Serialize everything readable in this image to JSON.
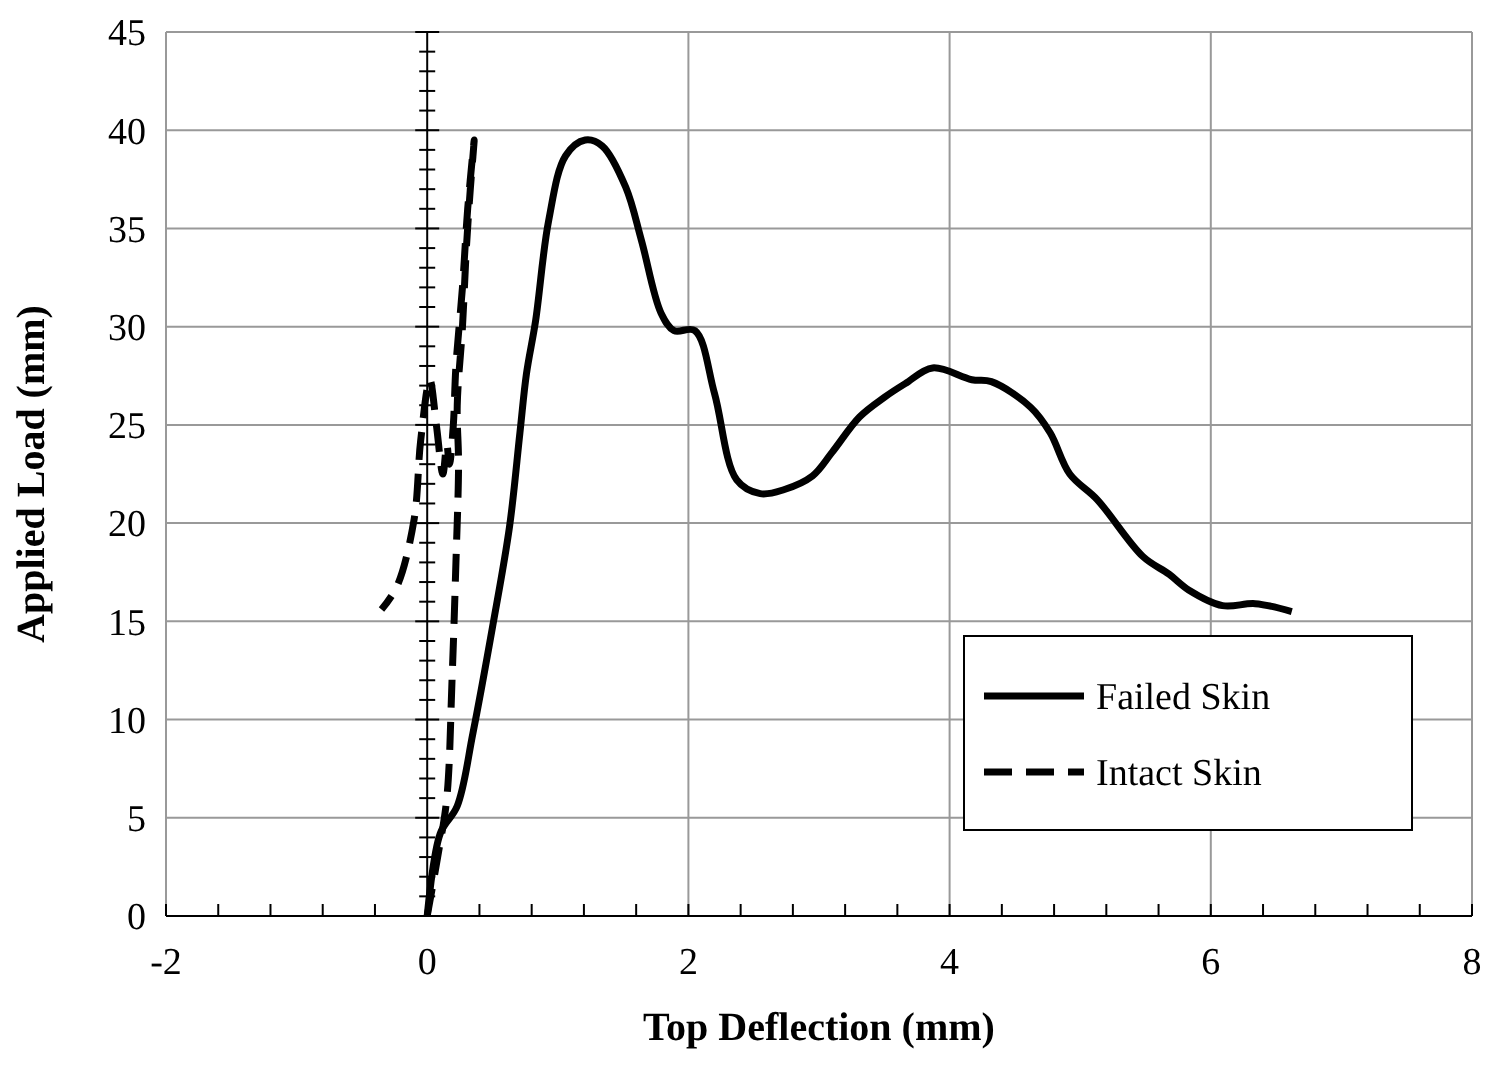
{
  "chart_data": {
    "type": "line",
    "xlabel": "Top Deflection (mm)",
    "ylabel": "Applied Load (mm)",
    "xlim": [
      -2,
      8
    ],
    "ylim": [
      0,
      45
    ],
    "xticks": [
      -2,
      {
        "value": -1.6,
        "label": null
      },
      {
        "value": -1.2,
        "label": null
      },
      {
        "value": -0.8,
        "label": null
      },
      {
        "value": -0.4,
        "label": null
      },
      0,
      {
        "value": 0.4,
        "label": null
      },
      {
        "value": 0.8,
        "label": null
      },
      {
        "value": 1.2,
        "label": null
      },
      {
        "value": 1.6,
        "label": null
      },
      2,
      {
        "value": 2.4,
        "label": null
      },
      {
        "value": 2.8,
        "label": null
      },
      {
        "value": 3.2,
        "label": null
      },
      {
        "value": 3.6,
        "label": null
      },
      4,
      {
        "value": 4.4,
        "label": null
      },
      {
        "value": 4.8,
        "label": null
      },
      {
        "value": 5.2,
        "label": null
      },
      {
        "value": 5.6,
        "label": null
      },
      6,
      {
        "value": 6.4,
        "label": null
      },
      {
        "value": 6.8,
        "label": null
      },
      {
        "value": 7.2,
        "label": null
      },
      {
        "value": 7.6,
        "label": null
      },
      8
    ],
    "yticks": [
      0,
      5,
      10,
      15,
      20,
      25,
      30,
      35,
      40,
      45
    ],
    "grid": true,
    "legend": "bottom right",
    "series": [
      {
        "name": "Failed Skin",
        "color": "#000000",
        "line_style": "solid",
        "x": [
          0,
          0.1,
          0.23,
          0.35,
          0.5,
          0.63,
          0.71,
          0.76,
          0.83,
          0.93,
          1.06,
          1.21,
          1.34,
          1.52,
          1.64,
          1.79,
          1.89,
          2.05,
          2.2,
          2.37,
          2.55,
          2.73,
          2.95,
          3.1,
          3.31,
          3.5,
          3.66,
          3.87,
          4.17,
          4.32,
          4.62,
          4.77,
          4.92,
          5.13,
          5.48,
          5.68,
          5.83,
          6.09,
          6.34,
          6.62
        ],
        "values": [
          0,
          4.2,
          5.6,
          9.3,
          14.7,
          19.8,
          24.6,
          27.6,
          30.3,
          35.4,
          38.7,
          39.5,
          39.2,
          37.1,
          34.4,
          30.7,
          29.8,
          29.8,
          26.6,
          22.2,
          21.5,
          21.7,
          22.4,
          23.6,
          25.4,
          26.4,
          27.1,
          27.9,
          27.3,
          27.2,
          25.9,
          24.6,
          22.5,
          21.2,
          18.3,
          17.4,
          16.6,
          15.8,
          15.9,
          15.5
        ]
      },
      {
        "name": "Intact Skin",
        "color": "#000000",
        "line_style": "dashed",
        "x": [
          0,
          0.08,
          0.15,
          0.19,
          0.22,
          0.24,
          0.23,
          0.27,
          0.3,
          0.33,
          0.36,
          0.31,
          0.27,
          0.22,
          0.2,
          0.17,
          0.15,
          0.12,
          0.07,
          0.02,
          -0.05,
          -0.1,
          -0.23,
          -0.35
        ],
        "values": [
          0,
          3,
          6,
          12,
          18,
          23,
          26,
          30,
          34,
          37,
          39.5,
          36,
          32,
          28,
          25,
          23,
          24,
          22.5,
          25,
          27.3,
          24.2,
          20.2,
          16.8,
          15.6
        ]
      }
    ]
  }
}
